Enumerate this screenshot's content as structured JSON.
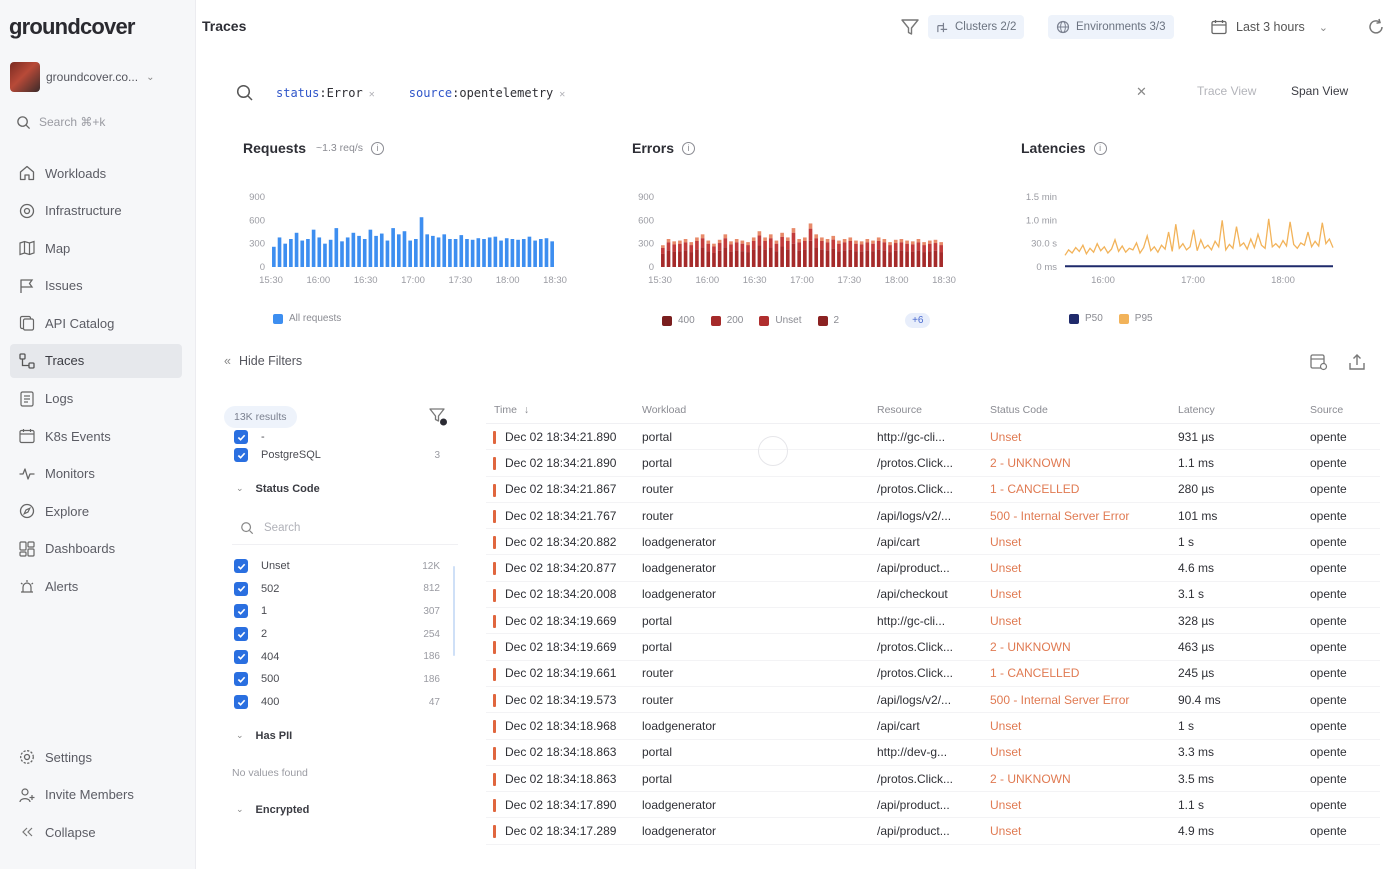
{
  "app": {
    "logo": "groundcover",
    "org_name": "groundcover.co...",
    "search_placeholder": "Search ⌘+k"
  },
  "nav": [
    {
      "label": "Workloads",
      "icon": "home-icon"
    },
    {
      "label": "Infrastructure",
      "icon": "infrastructure-icon"
    },
    {
      "label": "Map",
      "icon": "map-icon"
    },
    {
      "label": "Issues",
      "icon": "flag-icon"
    },
    {
      "label": "API Catalog",
      "icon": "api-catalog-icon"
    },
    {
      "label": "Traces",
      "icon": "traces-icon",
      "active": true
    },
    {
      "label": "Logs",
      "icon": "logs-icon"
    },
    {
      "label": "K8s Events",
      "icon": "calendar-icon"
    },
    {
      "label": "Monitors",
      "icon": "pulse-icon"
    },
    {
      "label": "Explore",
      "icon": "compass-icon"
    },
    {
      "label": "Dashboards",
      "icon": "dashboards-icon"
    },
    {
      "label": "Alerts",
      "icon": "alerts-icon"
    }
  ],
  "nav_bottom": [
    {
      "label": "Settings",
      "icon": "gear-icon"
    },
    {
      "label": "Invite Members",
      "icon": "invite-icon"
    },
    {
      "label": "Collapse",
      "icon": "collapse-icon"
    }
  ],
  "header": {
    "title": "Traces",
    "clusters": "Clusters 2/2",
    "environments": "Environments 3/3",
    "time_range": "Last 3 hours"
  },
  "query": {
    "tokens": [
      {
        "key": "status",
        "value": "Error"
      },
      {
        "key": "source",
        "value": "opentelemetry"
      }
    ],
    "trace_view": "Trace View",
    "span_view": "Span View"
  },
  "charts": {
    "requests": {
      "title": "Requests",
      "rate": "~1.3 req/s"
    },
    "errors": {
      "title": "Errors"
    },
    "latencies": {
      "title": "Latencies"
    }
  },
  "chart_data": [
    {
      "type": "bar",
      "title": "Requests",
      "ylim": [
        0,
        900
      ],
      "yticks": [
        "900",
        "600",
        "300",
        "0"
      ],
      "xticks": [
        "15:30",
        "16:00",
        "16:30",
        "17:00",
        "17:30",
        "18:00",
        "18:30"
      ],
      "legend": [
        "All requests"
      ],
      "colors": [
        "#3d8ef0"
      ],
      "series": [
        {
          "name": "All requests",
          "values": [
            260,
            380,
            300,
            360,
            440,
            340,
            360,
            480,
            380,
            300,
            350,
            500,
            330,
            380,
            440,
            400,
            360,
            480,
            400,
            430,
            340,
            500,
            420,
            460,
            340,
            360,
            640,
            420,
            400,
            380,
            420,
            360,
            360,
            410,
            360,
            350,
            370,
            360,
            380,
            390,
            340,
            370,
            360,
            350,
            360,
            390,
            340,
            360,
            370,
            330
          ]
        }
      ]
    },
    {
      "type": "bar",
      "title": "Errors",
      "ylim": [
        0,
        900
      ],
      "yticks": [
        "900",
        "600",
        "300",
        "0"
      ],
      "xticks": [
        "15:30",
        "16:00",
        "16:30",
        "17:00",
        "17:30",
        "18:00",
        "18:30"
      ],
      "legend": [
        "400",
        "200",
        "Unset",
        "2"
      ],
      "legend_more": "+6",
      "colors": [
        "#7a1e1e",
        "#a52a2a",
        "#c23b3b",
        "#e88a6a"
      ],
      "series": [
        {
          "name": "Total",
          "values": [
            280,
            360,
            330,
            340,
            360,
            320,
            380,
            420,
            340,
            300,
            350,
            420,
            330,
            360,
            340,
            320,
            380,
            460,
            380,
            420,
            340,
            440,
            380,
            500,
            360,
            380,
            560,
            420,
            380,
            360,
            400,
            340,
            360,
            380,
            340,
            330,
            360,
            340,
            380,
            360,
            320,
            350,
            360,
            340,
            330,
            360,
            320,
            340,
            350,
            320
          ]
        }
      ]
    },
    {
      "type": "line",
      "title": "Latencies",
      "yticks": [
        "1.5 min",
        "1.0 min",
        "30.0 s",
        "0 ms"
      ],
      "xticks": [
        "16:00",
        "17:00",
        "18:00"
      ],
      "legend": [
        "P50",
        "P95"
      ],
      "colors": [
        "#1f2a6b",
        "#f2b35a"
      ],
      "series": [
        {
          "name": "P95",
          "values": [
            15,
            22,
            18,
            25,
            20,
            28,
            17,
            24,
            19,
            30,
            21,
            26,
            18,
            23,
            35,
            20,
            27,
            19,
            24,
            22,
            31,
            18,
            25,
            40,
            21,
            26,
            19,
            28,
            23,
            45,
            20,
            55,
            24,
            30,
            22,
            26,
            48,
            21,
            35,
            24,
            28,
            22,
            33,
            26,
            60,
            22,
            29,
            24,
            52,
            27,
            31,
            23,
            36,
            25,
            42,
            28,
            24,
            62,
            26,
            30,
            25,
            34,
            27,
            58,
            29,
            24,
            31,
            28,
            45,
            26,
            33,
            27,
            57,
            30,
            36,
            25
          ]
        },
        {
          "name": "P50",
          "values": [
            1,
            1,
            1,
            1,
            1,
            1,
            1,
            1,
            1,
            1,
            1,
            1,
            1,
            1,
            1,
            1,
            1,
            1,
            1,
            1,
            1,
            1,
            1,
            1,
            1,
            1,
            1,
            1,
            1,
            1,
            1,
            1,
            1,
            1,
            1,
            1,
            1,
            1,
            1,
            1,
            1,
            1,
            1,
            1,
            1,
            1,
            1,
            1,
            1,
            1,
            1,
            1,
            1,
            1,
            1,
            1,
            1,
            1,
            1,
            1,
            1,
            1,
            1,
            1,
            1,
            1,
            1,
            1,
            1,
            1,
            1,
            1,
            1,
            1,
            1,
            1
          ]
        }
      ]
    }
  ],
  "filters": {
    "hide_label": "Hide Filters",
    "results": "13K results",
    "source_rows": [
      {
        "label": "-",
        "count": ""
      },
      {
        "label": "PostgreSQL",
        "count": "3"
      }
    ],
    "status_section": "Status Code",
    "search_placeholder": "Search",
    "status_rows": [
      {
        "label": "Unset",
        "count": "12K"
      },
      {
        "label": "502",
        "count": "812"
      },
      {
        "label": "1",
        "count": "307"
      },
      {
        "label": "2",
        "count": "254"
      },
      {
        "label": "404",
        "count": "186"
      },
      {
        "label": "500",
        "count": "186"
      },
      {
        "label": "400",
        "count": "47"
      }
    ],
    "pii_section": "Has PII",
    "pii_empty": "No values found",
    "encrypted_section": "Encrypted"
  },
  "table": {
    "headers": {
      "time": "Time",
      "workload": "Workload",
      "resource": "Resource",
      "status": "Status Code",
      "latency": "Latency",
      "source": "Source"
    },
    "rows": [
      {
        "time": "Dec 02 18:34:21.890",
        "workload": "portal",
        "resource": "http://gc-cli...",
        "status": "Unset",
        "latency": "931 µs",
        "source": "opente"
      },
      {
        "time": "Dec 02 18:34:21.890",
        "workload": "portal",
        "resource": "/protos.Click...",
        "status": "2 - UNKNOWN",
        "latency": "1.1 ms",
        "source": "opente"
      },
      {
        "time": "Dec 02 18:34:21.867",
        "workload": "router",
        "resource": "/protos.Click...",
        "status": "1 - CANCELLED",
        "latency": "280 µs",
        "source": "opente"
      },
      {
        "time": "Dec 02 18:34:21.767",
        "workload": "router",
        "resource": "/api/logs/v2/...",
        "status": "500 - Internal Server Error",
        "latency": "101 ms",
        "source": "opente"
      },
      {
        "time": "Dec 02 18:34:20.882",
        "workload": "loadgenerator",
        "resource": "/api/cart",
        "status": "Unset",
        "latency": "1 s",
        "source": "opente"
      },
      {
        "time": "Dec 02 18:34:20.877",
        "workload": "loadgenerator",
        "resource": "/api/product...",
        "status": "Unset",
        "latency": "4.6 ms",
        "source": "opente"
      },
      {
        "time": "Dec 02 18:34:20.008",
        "workload": "loadgenerator",
        "resource": "/api/checkout",
        "status": "Unset",
        "latency": "3.1 s",
        "source": "opente"
      },
      {
        "time": "Dec 02 18:34:19.669",
        "workload": "portal",
        "resource": "http://gc-cli...",
        "status": "Unset",
        "latency": "328 µs",
        "source": "opente"
      },
      {
        "time": "Dec 02 18:34:19.669",
        "workload": "portal",
        "resource": "/protos.Click...",
        "status": "2 - UNKNOWN",
        "latency": "463 µs",
        "source": "opente"
      },
      {
        "time": "Dec 02 18:34:19.661",
        "workload": "router",
        "resource": "/protos.Click...",
        "status": "1 - CANCELLED",
        "latency": "245 µs",
        "source": "opente"
      },
      {
        "time": "Dec 02 18:34:19.573",
        "workload": "router",
        "resource": "/api/logs/v2/...",
        "status": "500 - Internal Server Error",
        "latency": "90.4 ms",
        "source": "opente"
      },
      {
        "time": "Dec 02 18:34:18.968",
        "workload": "loadgenerator",
        "resource": "/api/cart",
        "status": "Unset",
        "latency": "1 s",
        "source": "opente"
      },
      {
        "time": "Dec 02 18:34:18.863",
        "workload": "portal",
        "resource": "http://dev-g...",
        "status": "Unset",
        "latency": "3.3 ms",
        "source": "opente"
      },
      {
        "time": "Dec 02 18:34:18.863",
        "workload": "portal",
        "resource": "/protos.Click...",
        "status": "2 - UNKNOWN",
        "latency": "3.5 ms",
        "source": "opente"
      },
      {
        "time": "Dec 02 18:34:17.890",
        "workload": "loadgenerator",
        "resource": "/api/product...",
        "status": "Unset",
        "latency": "1.1 s",
        "source": "opente"
      },
      {
        "time": "Dec 02 18:34:17.289",
        "workload": "loadgenerator",
        "resource": "/api/product...",
        "status": "Unset",
        "latency": "4.9 ms",
        "source": "opente"
      }
    ]
  }
}
